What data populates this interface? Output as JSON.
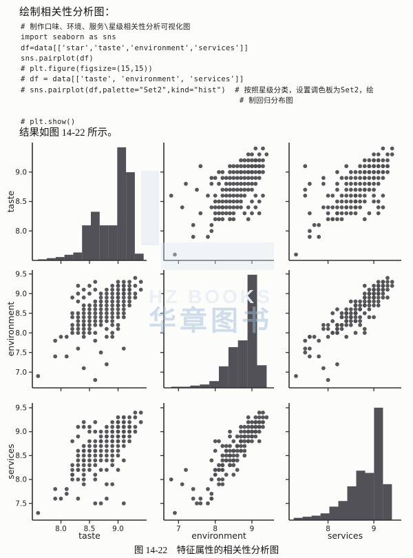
{
  "page": {
    "heading": "绘制相关性分析图：",
    "code_lines": [
      "# 制作口味、环境、服务\\星级相关性分析可视化图",
      "import seaborn as sns",
      "df=data[['star','taste','environment','services']]",
      "sns.pairplot(df)",
      "# plt.figure(figsize=(15,15))",
      "# df = data[['taste', 'environment', 'services']]",
      "# sns.pairplot(df,palette=\"Set2\",kind=\"hist\")  # 按照星级分类，设置调色板为Set2，绘",
      "                                                # 制回归分布图",
      "",
      "# plt.show()"
    ],
    "result_text": "结果如图 14-22 所示。",
    "caption": "图 14-22　特征属性的相关性分析图"
  },
  "watermark": {
    "text_top": "HZ BOOKS",
    "text_bottom": "华章图书"
  },
  "chart_data": {
    "type": "scatter",
    "subtype": "seaborn-pairplot-3x3",
    "diagonal": "histogram",
    "variables": [
      "taste",
      "environment",
      "services"
    ],
    "legend": "none",
    "grid": false,
    "colors": {
      "marker": "#4e4e53",
      "bar": "#515157",
      "spine": "#2e2e2e",
      "tick_label": "#1c1c1c"
    },
    "axes": {
      "taste": {
        "label": "taste",
        "range": [
          7.5,
          9.5
        ],
        "x_ticks": {
          "values": [
            8.0,
            8.5,
            9.0
          ],
          "labels": [
            "8.0",
            "8.5",
            "9.0"
          ]
        },
        "y_ticks": {
          "values": [
            8.0,
            8.5,
            9.0
          ],
          "labels": [
            "8.0",
            "8.5",
            "9.0"
          ]
        }
      },
      "environment": {
        "label": "environment",
        "range": [
          6.6,
          9.6
        ],
        "x_ticks": {
          "values": [
            7,
            8,
            9
          ],
          "labels": [
            "7",
            "8",
            "9"
          ]
        },
        "y_ticks": {
          "values": [
            7.0,
            7.5,
            8.0,
            8.5,
            9.0,
            9.5
          ],
          "labels": [
            "7.0",
            "7.5",
            "8.0",
            "8.5",
            "9.0",
            "9.5"
          ]
        }
      },
      "services": {
        "label": "services",
        "range": [
          7.15,
          9.6
        ],
        "x_ticks": {
          "values": [
            8,
            9
          ],
          "labels": [
            "8",
            "9"
          ]
        },
        "y_ticks": {
          "values": [
            7.5,
            8.0,
            8.5,
            9.0,
            9.5
          ],
          "labels": [
            "7.5",
            "8.0",
            "8.5",
            "9.0",
            "9.5"
          ]
        }
      }
    },
    "histograms": {
      "taste": {
        "start": 7.6,
        "bin_width": 0.154,
        "heights": [
          0.01,
          0.02,
          0.03,
          0.05,
          0.07,
          0.31,
          0.43,
          0.31,
          0.31,
          1.0,
          0.78,
          0.06
        ]
      },
      "environment": {
        "start": 6.8,
        "bin_width": 0.26,
        "heights": [
          0.01,
          0.01,
          0.02,
          0.03,
          0.06,
          0.19,
          0.36,
          0.42,
          1.0,
          0.2
        ]
      },
      "services": {
        "start": 7.25,
        "bin_width": 0.195,
        "heights": [
          0.02,
          0.03,
          0.04,
          0.06,
          0.12,
          0.17,
          0.3,
          0.44,
          0.42,
          1.0,
          0.32
        ]
      }
    },
    "points_note": "estimated [taste, environment, services] records read from the scatter grid (values quantized to 0.1)",
    "points": [
      [
        7.6,
        6.9,
        7.3
      ],
      [
        7.9,
        7.4,
        7.6
      ],
      [
        8.1,
        7.4,
        7.8
      ],
      [
        7.9,
        7.8,
        7.8
      ],
      [
        8.0,
        7.9,
        7.6
      ],
      [
        8.1,
        7.9,
        7.7
      ],
      [
        8.4,
        7.1,
        7.9
      ],
      [
        8.6,
        6.8,
        8.0
      ],
      [
        8.8,
        7.2,
        8.2
      ],
      [
        8.3,
        7.6,
        7.6
      ],
      [
        8.7,
        7.5,
        7.5
      ],
      [
        9.1,
        7.6,
        7.5
      ],
      [
        8.6,
        7.8,
        7.5
      ],
      [
        8.2,
        8.0,
        8.1
      ],
      [
        8.2,
        8.2,
        8.0
      ],
      [
        8.2,
        8.4,
        8.3
      ],
      [
        8.2,
        8.1,
        8.2
      ],
      [
        8.2,
        8.5,
        8.1
      ],
      [
        8.2,
        8.9,
        8.8
      ],
      [
        8.3,
        8.0,
        8.2
      ],
      [
        8.3,
        8.2,
        8.2
      ],
      [
        8.3,
        8.3,
        8.4
      ],
      [
        8.3,
        8.5,
        8.3
      ],
      [
        8.3,
        8.1,
        8.0
      ],
      [
        8.3,
        8.4,
        8.6
      ],
      [
        8.3,
        8.8,
        8.5
      ],
      [
        8.3,
        9.0,
        8.9
      ],
      [
        8.3,
        9.2,
        9.1
      ],
      [
        8.4,
        8.1,
        8.3
      ],
      [
        8.4,
        8.2,
        8.4
      ],
      [
        8.4,
        8.3,
        8.1
      ],
      [
        8.4,
        8.4,
        8.4
      ],
      [
        8.4,
        8.5,
        8.5
      ],
      [
        8.4,
        8.0,
        8.6
      ],
      [
        8.4,
        8.6,
        8.2
      ],
      [
        8.4,
        8.2,
        8.7
      ],
      [
        8.4,
        8.7,
        8.6
      ],
      [
        8.4,
        7.9,
        8.0
      ],
      [
        8.4,
        8.9,
        9.2
      ],
      [
        8.4,
        9.1,
        9.1
      ],
      [
        8.5,
        8.2,
        8.3
      ],
      [
        8.5,
        8.4,
        8.5
      ],
      [
        8.5,
        8.5,
        8.4
      ],
      [
        8.5,
        8.3,
        8.6
      ],
      [
        8.5,
        8.6,
        8.6
      ],
      [
        8.5,
        8.0,
        8.2
      ],
      [
        8.5,
        8.7,
        8.7
      ],
      [
        8.5,
        8.1,
        8.8
      ],
      [
        8.5,
        9.0,
        9.0
      ],
      [
        8.5,
        9.2,
        9.1
      ],
      [
        8.6,
        8.3,
        8.4
      ],
      [
        8.6,
        8.5,
        8.6
      ],
      [
        8.6,
        8.6,
        8.5
      ],
      [
        8.6,
        8.4,
        8.7
      ],
      [
        8.6,
        8.7,
        8.8
      ],
      [
        8.6,
        8.2,
        8.3
      ],
      [
        8.6,
        8.8,
        8.6
      ],
      [
        8.6,
        8.0,
        8.1
      ],
      [
        8.6,
        9.1,
        9.0
      ],
      [
        8.6,
        9.3,
        9.2
      ],
      [
        8.7,
        8.4,
        8.5
      ],
      [
        8.7,
        8.6,
        8.7
      ],
      [
        8.7,
        8.8,
        8.8
      ],
      [
        8.7,
        8.5,
        8.4
      ],
      [
        8.7,
        8.9,
        9.0
      ],
      [
        8.7,
        8.3,
        8.6
      ],
      [
        8.7,
        8.7,
        8.9
      ],
      [
        8.7,
        9.0,
        8.8
      ],
      [
        8.7,
        8.2,
        8.2
      ],
      [
        8.8,
        8.5,
        8.6
      ],
      [
        8.8,
        8.7,
        8.8
      ],
      [
        8.8,
        8.9,
        8.9
      ],
      [
        8.8,
        8.4,
        8.5
      ],
      [
        8.8,
        9.0,
        9.1
      ],
      [
        8.8,
        8.6,
        8.4
      ],
      [
        8.8,
        8.8,
        9.0
      ],
      [
        8.8,
        8.3,
        8.7
      ],
      [
        8.8,
        9.1,
        8.9
      ],
      [
        8.8,
        7.9,
        7.6
      ],
      [
        8.8,
        8.1,
        7.9
      ],
      [
        8.9,
        8.6,
        8.7
      ],
      [
        8.9,
        8.8,
        8.9
      ],
      [
        8.9,
        9.0,
        9.0
      ],
      [
        8.9,
        8.5,
        8.8
      ],
      [
        8.9,
        9.1,
        9.2
      ],
      [
        8.9,
        8.7,
        8.6
      ],
      [
        8.9,
        8.9,
        9.1
      ],
      [
        8.9,
        8.4,
        8.3
      ],
      [
        8.9,
        9.2,
        9.0
      ],
      [
        8.9,
        8.3,
        8.5
      ],
      [
        8.9,
        8.0,
        8.8
      ],
      [
        8.9,
        7.9,
        8.4
      ],
      [
        8.9,
        8.2,
        7.9
      ],
      [
        9.0,
        8.7,
        8.8
      ],
      [
        9.0,
        8.9,
        9.0
      ],
      [
        9.0,
        9.1,
        9.1
      ],
      [
        9.0,
        8.6,
        8.9
      ],
      [
        9.0,
        9.2,
        9.2
      ],
      [
        9.0,
        8.8,
        8.7
      ],
      [
        9.0,
        9.0,
        9.2
      ],
      [
        9.0,
        8.5,
        8.6
      ],
      [
        9.0,
        9.3,
        9.1
      ],
      [
        9.0,
        8.4,
        9.0
      ],
      [
        9.0,
        8.2,
        8.5
      ],
      [
        9.0,
        9.0,
        8.9
      ],
      [
        9.0,
        8.9,
        9.3
      ],
      [
        9.0,
        8.1,
        8.2
      ],
      [
        9.0,
        8.7,
        9.1
      ],
      [
        9.0,
        9.2,
        8.8
      ],
      [
        9.1,
        8.8,
        8.9
      ],
      [
        9.1,
        9.0,
        9.1
      ],
      [
        9.1,
        9.2,
        9.2
      ],
      [
        9.1,
        8.7,
        9.0
      ],
      [
        9.1,
        9.1,
        9.3
      ],
      [
        9.1,
        8.9,
        8.8
      ],
      [
        9.1,
        9.3,
        9.2
      ],
      [
        9.1,
        8.6,
        8.7
      ],
      [
        9.1,
        9.0,
        9.0
      ],
      [
        9.1,
        8.5,
        8.4
      ],
      [
        9.1,
        9.1,
        9.1
      ],
      [
        9.1,
        8.4,
        8.9
      ],
      [
        9.1,
        9.2,
        9.3
      ],
      [
        9.2,
        8.9,
        9.0
      ],
      [
        9.2,
        9.1,
        9.2
      ],
      [
        9.2,
        9.3,
        9.3
      ],
      [
        9.2,
        8.8,
        9.1
      ],
      [
        9.2,
        9.0,
        8.9
      ],
      [
        9.2,
        9.2,
        9.1
      ],
      [
        9.2,
        8.7,
        8.8
      ],
      [
        9.2,
        9.1,
        9.0
      ],
      [
        9.3,
        9.0,
        9.1
      ],
      [
        9.3,
        9.2,
        9.4
      ],
      [
        9.3,
        9.4,
        9.3
      ],
      [
        9.3,
        8.9,
        9.0
      ],
      [
        9.4,
        9.3,
        9.4
      ],
      [
        9.4,
        9.1,
        9.2
      ]
    ]
  }
}
